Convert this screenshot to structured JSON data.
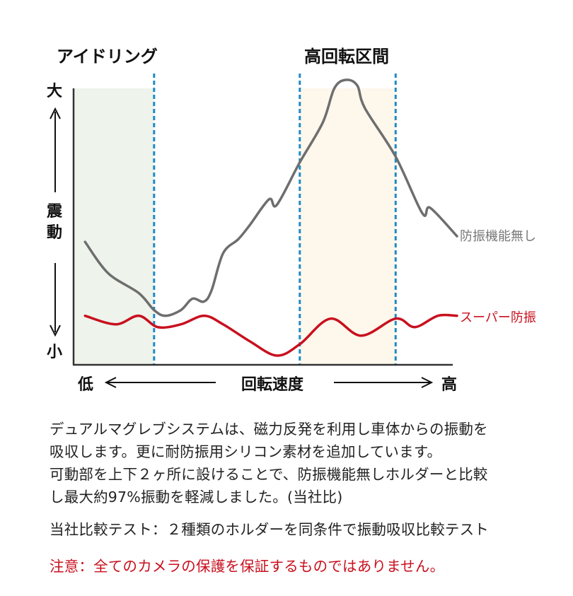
{
  "chart_data": {
    "type": "line",
    "xlabel": "回転速度",
    "x_low_label": "低",
    "x_high_label": "高",
    "ylabel": "震動",
    "y_high_label": "大",
    "y_low_label": "小",
    "xlim": [
      0,
      100
    ],
    "ylim": [
      0,
      100
    ],
    "grid": false,
    "legend": "inline-right",
    "regions": [
      {
        "label": "アイドリング",
        "x": [
          0,
          21
        ],
        "color": "#eef3eb"
      },
      {
        "label": "高回転区間",
        "x": [
          59,
          84
        ],
        "color": "#fdf7ec"
      }
    ],
    "dividers": {
      "x": [
        21,
        59,
        84
      ],
      "color": "#1f8bc5"
    },
    "series": [
      {
        "name": "防振機能無し",
        "color": "#6e6e6e",
        "x": [
          3,
          9,
          17,
          21,
          24,
          28,
          31,
          34,
          36,
          39,
          43,
          46,
          51,
          53,
          59,
          65,
          68,
          71,
          74,
          76,
          84,
          91,
          93,
          100
        ],
        "y": [
          43,
          32,
          25,
          19,
          17,
          19,
          23,
          22,
          26,
          39,
          44,
          49,
          58,
          56,
          71,
          85,
          97,
          100,
          98,
          90,
          73,
          53,
          55,
          45
        ]
      },
      {
        "name": "スーパー防振",
        "color": "#c8101e",
        "x": [
          3,
          11,
          17,
          22,
          28,
          34,
          39,
          46,
          53,
          59,
          67,
          75,
          84,
          89,
          95,
          100
        ],
        "y": [
          17,
          14,
          17,
          13,
          14,
          17,
          14,
          8,
          3,
          7,
          16,
          10,
          16,
          13,
          17,
          17
        ]
      }
    ]
  },
  "description": {
    "lines": [
      "デュアルマグレブシステムは、磁力反発を利用し車体からの振動を",
      "吸収します。更に耐防振用シリコン素材を追加しています。",
      "可動部を上下２ヶ所に設けることで、防振機能無しホルダーと比較",
      "し最大約97%振動を軽減しました。(当社比)"
    ],
    "test_note": "当社比較テスト：２種類のホルダーを同条件で振動吸収比較テスト",
    "caution": "注意：全てのカメラの保護を保証するものではありません。",
    "caution_color": "#c8101e"
  }
}
